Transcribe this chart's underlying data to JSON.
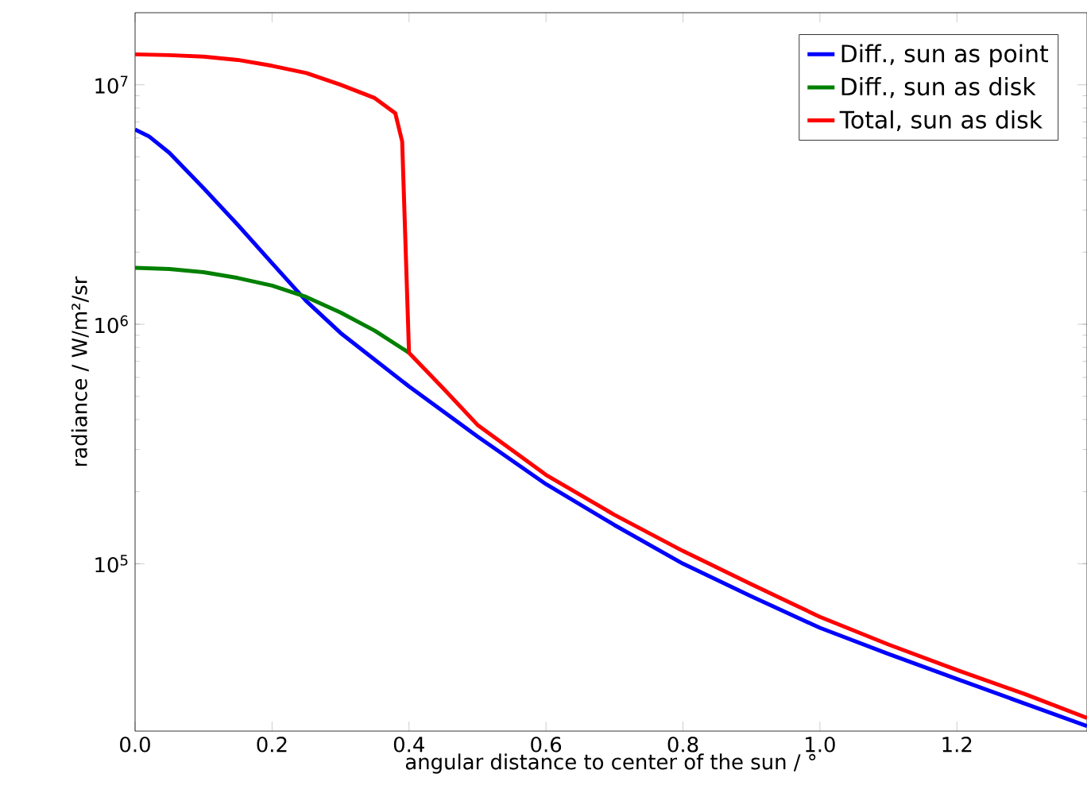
{
  "chart_data": {
    "type": "line",
    "xlabel": "angular distance to center of the sun / °",
    "ylabel": "radiance / W/m²/sr",
    "log": "y",
    "legend": "top right",
    "grid": false,
    "marker": "none",
    "line_style": "solid",
    "xlim": [
      0,
      1.39
    ],
    "ylim": [
      20000,
      20000000
    ],
    "xticks": [
      {
        "value": 0,
        "label": "0.0"
      },
      {
        "value": 0.2,
        "label": "0.2"
      },
      {
        "value": 0.4,
        "label": "0.4"
      },
      {
        "value": 0.6,
        "label": "0.6"
      },
      {
        "value": 0.8,
        "label": "0.8"
      },
      {
        "value": 1.0,
        "label": "1.0"
      },
      {
        "value": 1.2,
        "label": "1.2"
      }
    ],
    "yticks": [
      {
        "value": 100000,
        "label": "10$^{5}$"
      },
      {
        "value": 1000000,
        "label": "10$^{6}$"
      },
      {
        "value": 10000000,
        "label": "10$^{7}$"
      }
    ],
    "series": [
      {
        "name": "Diff., sun as point",
        "color": "#0000ff",
        "x": [
          0,
          0.02,
          0.05,
          0.1,
          0.15,
          0.2,
          0.25,
          0.3,
          0.4,
          0.5,
          0.6,
          0.7,
          0.8,
          0.9,
          1.0,
          1.1,
          1.2,
          1.3,
          1.39
        ],
        "values": [
          6500000,
          6100000,
          5200000,
          3700000,
          2600000,
          1800000,
          1250000,
          920000,
          550000,
          340000,
          215000,
          145000,
          100000,
          73000,
          54000,
          42000,
          33000,
          26000,
          21000
        ]
      },
      {
        "name": "Diff., sun as disk",
        "color": "#008000",
        "x": [
          0,
          0.05,
          0.1,
          0.15,
          0.2,
          0.25,
          0.3,
          0.35,
          0.4
        ],
        "values": [
          1720000,
          1700000,
          1650000,
          1560000,
          1450000,
          1300000,
          1120000,
          940000,
          760000
        ]
      },
      {
        "name": "Total, sun as disk",
        "color": "#ff0000",
        "x": [
          0,
          0.05,
          0.1,
          0.15,
          0.2,
          0.25,
          0.3,
          0.35,
          0.38,
          0.39,
          0.4,
          0.45,
          0.5,
          0.6,
          0.7,
          0.8,
          0.9,
          1.0,
          1.1,
          1.2,
          1.3,
          1.39
        ],
        "values": [
          13400000,
          13300000,
          13100000,
          12700000,
          12000000,
          11200000,
          10000000,
          8800000,
          7600000,
          5800000,
          760000,
          540000,
          380000,
          235000,
          160000,
          113000,
          82000,
          60000,
          46000,
          36000,
          28500,
          22700
        ]
      }
    ]
  }
}
